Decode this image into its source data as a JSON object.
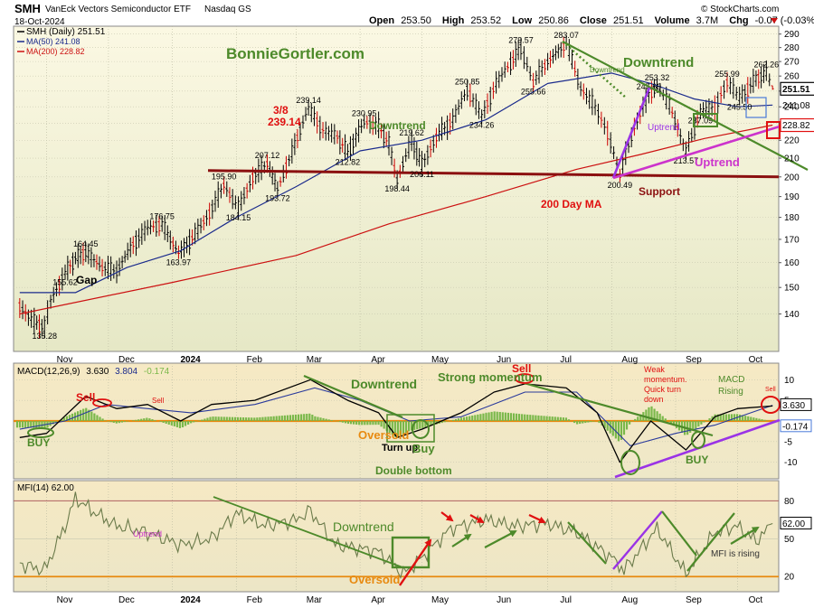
{
  "header": {
    "symbol": "SMH",
    "name": "VanEck Vectors Semiconductor ETF",
    "exchange": "Nasdaq GS",
    "date": "18-Oct-2024",
    "brand": "© StockCharts.com",
    "open_label": "Open",
    "open": "253.50",
    "high_label": "High",
    "high": "253.52",
    "low_label": "Low",
    "low": "250.86",
    "close_label": "Close",
    "close": "251.51",
    "volume_label": "Volume",
    "volume": "3.7M",
    "chg_label": "Chg",
    "chg": "-0.07 (-0.03%)"
  },
  "watermark": "BonnieGortler.com",
  "colors": {
    "bg_top": "#fbf8e3",
    "bg_bottom": "#e8e8c8",
    "candle": "#000000",
    "down_candle": "#cc0000",
    "ma50": "#1a2a8c",
    "ma200": "#cc1111",
    "support": "#8b1010",
    "trend_green": "#4d8a2a",
    "trend_magenta": "#cc33cc",
    "trend_purple": "#9a33e6",
    "annot_red": "#e01010",
    "annot_green": "#4d8a2a",
    "annot_orange": "#e88a10",
    "macd": "#000000",
    "signal": "#2a3a9c",
    "hist": "#7ab84a",
    "mfi": "#6a7a4a"
  },
  "chart_data": [
    {
      "type": "candlestick",
      "panel": "price",
      "legend": [
        {
          "key": "legend_price",
          "text": "SMH (Daily) 251.51"
        },
        {
          "key": "legend_ma50",
          "text": "MA(50) 241.08"
        },
        {
          "key": "legend_ma200",
          "text": "MA(200) 228.82"
        }
      ],
      "y_ticks": [
        140,
        150,
        160,
        170,
        180,
        190,
        200,
        210,
        220,
        230,
        240,
        250,
        260,
        270,
        280,
        290
      ],
      "y_range": [
        127,
        296
      ],
      "scale": "log",
      "x_ticks": [
        "Nov",
        "Dec",
        "2024",
        "Feb",
        "Mar",
        "Apr",
        "May",
        "Jun",
        "Jul",
        "Aug",
        "Sep",
        "Oct"
      ],
      "price_path": [
        [
          "Oct 19",
          143
        ],
        [
          "Oct 26",
          137
        ],
        [
          "Oct 31",
          135.28
        ],
        [
          "Nov 3",
          145
        ],
        [
          "Nov 10",
          155.62
        ],
        [
          "Nov 15",
          162
        ],
        [
          "Nov 20",
          164.45
        ],
        [
          "Nov 28",
          158
        ],
        [
          "Dec 5",
          156.6
        ],
        [
          "Dec 13",
          168
        ],
        [
          "Dec 20",
          175
        ],
        [
          "Dec 27",
          176.75
        ],
        [
          "Jan 4",
          163.97
        ],
        [
          "Jan 12",
          172
        ],
        [
          "Jan 19",
          182
        ],
        [
          "Jan 26",
          195.9
        ],
        [
          "Feb 2",
          184.15
        ],
        [
          "Feb 9",
          200
        ],
        [
          "Feb 16",
          207.12
        ],
        [
          "Feb 21",
          193.72
        ],
        [
          "Feb 28",
          213
        ],
        [
          "Mar 7",
          239.14
        ],
        [
          "Mar 14",
          226
        ],
        [
          "Mar 21",
          222
        ],
        [
          "Mar 26",
          212.82
        ],
        [
          "Apr 3",
          230.95
        ],
        [
          "Apr 10",
          228
        ],
        [
          "Apr 15",
          218
        ],
        [
          "Apr 19",
          198.44
        ],
        [
          "Apr 26",
          219.62
        ],
        [
          "May 1",
          206.11
        ],
        [
          "May 8",
          222
        ],
        [
          "May 16",
          232
        ],
        [
          "May 23",
          250.85
        ],
        [
          "May 30",
          234.26
        ],
        [
          "Jun 6",
          255
        ],
        [
          "Jun 13",
          269
        ],
        [
          "Jun 18",
          279.57
        ],
        [
          "Jun 24",
          255.66
        ],
        [
          "Jul 1",
          270
        ],
        [
          "Jul 10",
          283.07
        ],
        [
          "Jul 17",
          252
        ],
        [
          "Jul 24",
          240
        ],
        [
          "Jul 30",
          225
        ],
        [
          "Aug 5",
          200.49
        ],
        [
          "Aug 12",
          228
        ],
        [
          "Aug 19",
          247.69
        ],
        [
          "Aug 23",
          253.32
        ],
        [
          "Aug 29",
          241
        ],
        [
          "Sep 6",
          213.57
        ],
        [
          "Sep 13",
          237.09
        ],
        [
          "Sep 20",
          240
        ],
        [
          "Sep 26",
          255.99
        ],
        [
          "Oct 2",
          245.5
        ],
        [
          "Oct 10",
          258
        ],
        [
          "Oct 15",
          262.26
        ],
        [
          "Oct 18",
          251.51
        ]
      ],
      "price_labels": [
        {
          "text": "283.07",
          "date": "Jul 10",
          "value": 283.07
        },
        {
          "text": "279.57",
          "date": "Jun 18",
          "value": 279.57
        },
        {
          "text": "255.66",
          "date": "Jun 24",
          "value": 255.66
        },
        {
          "text": "250.85",
          "date": "May 23",
          "value": 250.85
        },
        {
          "text": "234.26",
          "date": "May 30",
          "value": 234.26
        },
        {
          "text": "247.69",
          "date": "Aug 19",
          "value": 247.69
        },
        {
          "text": "253.32",
          "date": "Aug 23",
          "value": 253.32
        },
        {
          "text": "255.99",
          "date": "Sep 26",
          "value": 255.99
        },
        {
          "text": "262.26",
          "date": "Oct 15",
          "value": 262.26
        },
        {
          "text": "245.50",
          "date": "Oct 2",
          "value": 245.5
        },
        {
          "text": "237.09",
          "date": "Sep 13",
          "value": 237.09
        },
        {
          "text": "213.57",
          "date": "Sep 6",
          "value": 213.57
        },
        {
          "text": "200.49",
          "date": "Aug 5",
          "value": 200.49
        },
        {
          "text": "239.14",
          "date": "Mar 7",
          "value": 239.14
        },
        {
          "text": "230.95",
          "date": "Apr 3",
          "value": 230.95
        },
        {
          "text": "219.62",
          "date": "Apr 26",
          "value": 219.62
        },
        {
          "text": "212.82",
          "date": "Mar 26",
          "value": 212.82
        },
        {
          "text": "206.11",
          "date": "May 1",
          "value": 206.11
        },
        {
          "text": "198.44",
          "date": "Apr 19",
          "value": 198.44
        },
        {
          "text": "207.12",
          "date": "Feb 16",
          "value": 207.12
        },
        {
          "text": "195.90",
          "date": "Jan 26",
          "value": 195.9
        },
        {
          "text": "193.72",
          "date": "Feb 21",
          "value": 193.72
        },
        {
          "text": "184.15",
          "date": "Feb 2",
          "value": 184.15
        },
        {
          "text": "176.75",
          "date": "Dec 27",
          "value": 176.75
        },
        {
          "text": "163.97",
          "date": "Jan 4",
          "value": 163.97
        },
        {
          "text": "164.45",
          "date": "Nov 20",
          "value": 164.45
        },
        {
          "text": "155.62",
          "date": "Nov 10",
          "value": 155.62
        },
        {
          "text": "135.28",
          "date": "Oct 31",
          "value": 135.28
        }
      ],
      "ma50_path": [
        [
          "Oct 19",
          148
        ],
        [
          "Nov 15",
          148
        ],
        [
          "Dec 10",
          158
        ],
        [
          "Jan 5",
          165
        ],
        [
          "Feb 1",
          180
        ],
        [
          "Mar 1",
          195
        ],
        [
          "Apr 1",
          214
        ],
        [
          "May 1",
          220
        ],
        [
          "Jun 1",
          232
        ],
        [
          "Jul 1",
          255
        ],
        [
          "Aug 1",
          262
        ],
        [
          "Aug 20",
          255
        ],
        [
          "Sep 10",
          245
        ],
        [
          "Oct 1",
          240
        ],
        [
          "Oct 18",
          241.08
        ]
      ],
      "ma200_path": [
        [
          "Oct 19",
          140
        ],
        [
          "Jan 1",
          152
        ],
        [
          "Mar 1",
          163
        ],
        [
          "Apr 15",
          177
        ],
        [
          "Jun 1",
          190
        ],
        [
          "Jul 15",
          204
        ],
        [
          "Aug 15",
          212
        ],
        [
          "Sep 15",
          221
        ],
        [
          "Oct 18",
          228.82
        ]
      ],
      "support_level": 200,
      "axis_markers": [
        {
          "text": "251.51",
          "value": 251.51,
          "style": "boxed"
        },
        {
          "text": "241.08",
          "value": 241.08,
          "style": "plain"
        },
        {
          "text": "228.82",
          "value": 228.82,
          "style": "red-box"
        }
      ],
      "annotations": {
        "downtrend1": "Downtrend",
        "downtrend_small": "Downtrend",
        "downtrend2": "Downtrend",
        "uptrend_small": "Uptrend",
        "uptrend": "Uptrend",
        "gap": "Gap",
        "date38": "3/8",
        "value38": "239.14",
        "ma200_label": "200 Day MA",
        "support_label": "Support"
      }
    },
    {
      "type": "line",
      "panel": "macd",
      "legend": [
        {
          "key": "legend_macd_title",
          "text": "MACD(12,26,9)"
        },
        {
          "key": "legend_macd_v",
          "text": "3.630"
        },
        {
          "key": "legend_macd_s",
          "text": "3.804"
        },
        {
          "key": "legend_macd_h",
          "text": "-0.174"
        }
      ],
      "y_ticks": [
        10,
        5,
        -5,
        -10
      ],
      "y_range": [
        -14,
        14
      ],
      "macd_path": [
        [
          "Oct 19",
          -4
        ],
        [
          "Nov 1",
          -3
        ],
        [
          "Nov 20",
          6
        ],
        [
          "Dec 5",
          3
        ],
        [
          "Dec 20",
          4
        ],
        [
          "Jan 5",
          0
        ],
        [
          "Jan 20",
          4
        ],
        [
          "Feb 10",
          5
        ],
        [
          "Mar 8",
          10
        ],
        [
          "Mar 26",
          5
        ],
        [
          "Apr 10",
          2
        ],
        [
          "Apr 19",
          -4
        ],
        [
          "May 1",
          -2
        ],
        [
          "May 20",
          2
        ],
        [
          "Jun 5",
          7
        ],
        [
          "Jun 20",
          9
        ],
        [
          "Jul 10",
          8
        ],
        [
          "Jul 25",
          2
        ],
        [
          "Aug 5",
          -10
        ],
        [
          "Aug 20",
          0
        ],
        [
          "Sep 6",
          -7
        ],
        [
          "Sep 20",
          1
        ],
        [
          "Oct 1",
          3
        ],
        [
          "Oct 18",
          3.63
        ]
      ],
      "signal_path": [
        [
          "Oct 19",
          -2
        ],
        [
          "Nov 10",
          0
        ],
        [
          "Nov 30",
          4
        ],
        [
          "Dec 20",
          3
        ],
        [
          "Jan 10",
          2
        ],
        [
          "Feb 10",
          4
        ],
        [
          "Mar 10",
          8
        ],
        [
          "Apr 1",
          5
        ],
        [
          "Apr 25",
          0
        ],
        [
          "May 20",
          1
        ],
        [
          "Jun 20",
          7
        ],
        [
          "Jul 15",
          7
        ],
        [
          "Aug 10",
          -6
        ],
        [
          "Sep 1",
          -3
        ],
        [
          "Sep 20",
          -1
        ],
        [
          "Oct 18",
          3.804
        ]
      ],
      "axis_markers": [
        {
          "text": "3.630",
          "value": 3.63,
          "style": "boxed"
        },
        {
          "text": "-0.174",
          "value": -0.174,
          "style": "blue-box"
        }
      ],
      "annotations": {
        "sell1": "Sell",
        "sell_small": "Sell",
        "buy1": "BUY",
        "downtrend": "Downtrend",
        "oversold": "Oversold",
        "turn_up": "Turn up",
        "buy2": "Buy",
        "double_bottom": "Double bottom",
        "strong_momentum": "Strong momentum",
        "sell2": "Sell",
        "weak1": "Weak",
        "weak2": "momentum.",
        "weak3": "Quick turn",
        "weak4": "down",
        "macd_rising1": "MACD",
        "macd_rising2": "Rising",
        "sell3": "Sell",
        "buy3": "BUY"
      }
    },
    {
      "type": "line",
      "panel": "mfi",
      "legend": [
        {
          "key": "legend_mfi",
          "text": "MFI(14) 62.00"
        }
      ],
      "y_ticks": [
        80,
        50,
        20
      ],
      "y_range": [
        8,
        96
      ],
      "mfi_path": [
        [
          "Oct 19",
          30
        ],
        [
          "Oct 31",
          25
        ],
        [
          "Nov 10",
          60
        ],
        [
          "Nov 15",
          82
        ],
        [
          "Nov 25",
          70
        ],
        [
          "Dec 5",
          60
        ],
        [
          "Dec 20",
          55
        ],
        [
          "Jan 5",
          45
        ],
        [
          "Jan 20",
          50
        ],
        [
          "Feb 1",
          70
        ],
        [
          "Feb 15",
          60
        ],
        [
          "Mar 1",
          65
        ],
        [
          "Mar 8",
          72
        ],
        [
          "Mar 20",
          45
        ],
        [
          "Apr 10",
          40
        ],
        [
          "Apr 22",
          22
        ],
        [
          "May 1",
          35
        ],
        [
          "May 15",
          58
        ],
        [
          "Jun 1",
          65
        ],
        [
          "Jun 15",
          60
        ],
        [
          "Jul 1",
          62
        ],
        [
          "Jul 15",
          55
        ],
        [
          "Aug 1",
          35
        ],
        [
          "Aug 7",
          25
        ],
        [
          "Aug 23",
          58
        ],
        [
          "Sep 6",
          22
        ],
        [
          "Sep 20",
          55
        ],
        [
          "Oct 1",
          60
        ],
        [
          "Oct 10",
          48
        ],
        [
          "Oct 18",
          62
        ]
      ],
      "axis_markers": [
        {
          "text": "62.00",
          "value": 62,
          "style": "boxed"
        }
      ],
      "annotations": {
        "uptrend": "Uptrend",
        "downtrend": "Downtrend",
        "oversold": "Oversold",
        "mfi_rising": "MFI is rising"
      }
    }
  ]
}
